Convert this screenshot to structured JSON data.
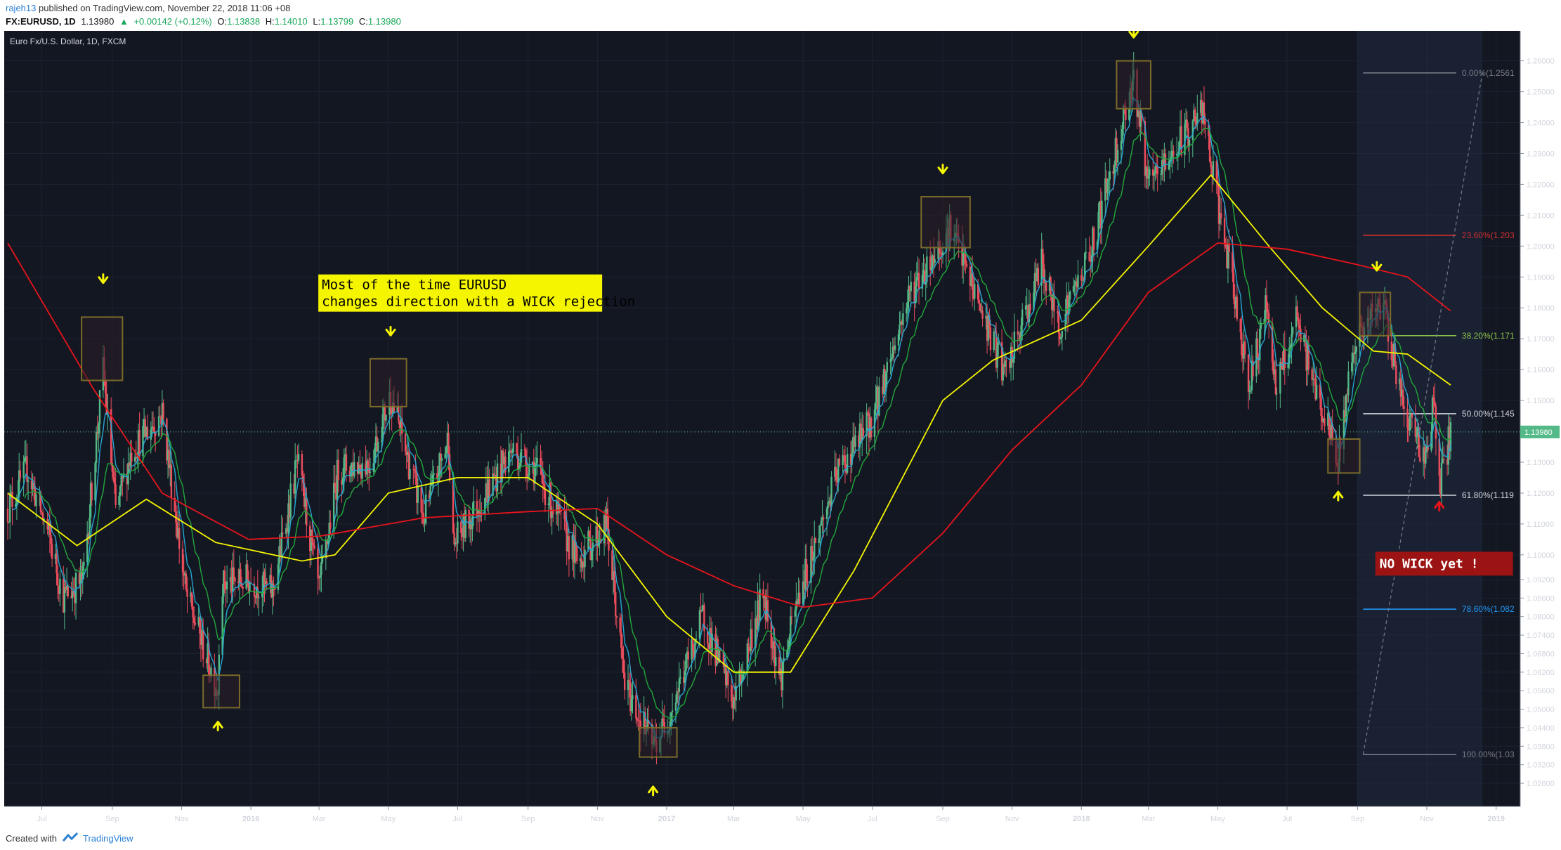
{
  "header": {
    "user": "rajeh13",
    "published": "published on TradingView.com, November 22, 2018 11:06 +08",
    "symbol": "FX:EURUSD, 1D",
    "last": "1.13980",
    "change": "+0.00142 (+0.12%)",
    "o_label": "O:",
    "o": "1.13838",
    "h_label": "H:",
    "h": "1.14010",
    "l_label": "L:",
    "l": "1.13799",
    "c_label": "C:",
    "c": "1.13980"
  },
  "footer": {
    "created": "Created with",
    "brand": "TradingView"
  },
  "colors": {
    "background": "#131722",
    "up_candle": "#53b987",
    "down_candle": "#eb4d5c",
    "ema_fast": "#26a6d1",
    "ema_mid": "#22a83c",
    "ma_yellow": "#f5f500",
    "ma_red": "#e8141c",
    "annotation_yellow": "#f5f500",
    "price_tag": "#53b987"
  },
  "chart_data": {
    "type": "candlestick",
    "title": "Euro Fx/U.S. Dollar, 1D, FXCM",
    "ylim": [
      1.0185,
      1.2697
    ],
    "ylabels": [
      "1.26000",
      "1.25000",
      "1.24000",
      "1.23000",
      "1.22000",
      "1.21000",
      "1.20000",
      "1.19000",
      "1.18000",
      "1.17000",
      "1.16000",
      "1.15000",
      "1.14000",
      "1.13000",
      "1.12000",
      "1.11000",
      "1.10000",
      "1.09200",
      "1.08600",
      "1.08000",
      "1.07400",
      "1.06800",
      "1.06200",
      "1.05600",
      "1.05000",
      "1.04400",
      "1.03800",
      "1.03200",
      "1.02600"
    ],
    "current_price": "1.13980",
    "xlabels": [
      "Jul",
      "Sep",
      "Nov",
      "2016",
      "Mar",
      "May",
      "Jul",
      "Sep",
      "Nov",
      "2017",
      "Mar",
      "May",
      "Jul",
      "Sep",
      "Nov",
      "2018",
      "Mar",
      "May",
      "Jul",
      "Sep",
      "Nov",
      "2019"
    ],
    "fibonacci": [
      {
        "label": "0.00%(1.2561",
        "price": 1.2561,
        "color": "#787b86"
      },
      {
        "label": "23.60%(1.203",
        "price": 1.2035,
        "color": "#d32f2f"
      },
      {
        "label": "38.20%(1.171",
        "price": 1.171,
        "color": "#8bc34a"
      },
      {
        "label": "50.00%(1.145",
        "price": 1.1457,
        "color": "#d1d4dc"
      },
      {
        "label": "61.80%(1.119",
        "price": 1.1193,
        "color": "#d1d4dc"
      },
      {
        "label": "78.60%(1.082",
        "price": 1.0824,
        "color": "#2196f3"
      },
      {
        "label": "100.00%(1.03",
        "price": 1.0353,
        "color": "#787b86"
      }
    ],
    "annotation_text": [
      "Most of the time EURUSD",
      "changes direction with a WICK rejection"
    ],
    "no_wick_text": "NO WICK yet !",
    "price_path": [
      {
        "t": "2015-06-01",
        "p": 1.115
      },
      {
        "t": "2015-06-18",
        "p": 1.128
      },
      {
        "t": "2015-07-08",
        "p": 1.105
      },
      {
        "t": "2015-07-20",
        "p": 1.086
      },
      {
        "t": "2015-08-06",
        "p": 1.092
      },
      {
        "t": "2015-08-24",
        "p": 1.16
      },
      {
        "t": "2015-09-04",
        "p": 1.114
      },
      {
        "t": "2015-09-18",
        "p": 1.134
      },
      {
        "t": "2015-10-15",
        "p": 1.146
      },
      {
        "t": "2015-11-05",
        "p": 1.087
      },
      {
        "t": "2015-12-03",
        "p": 1.056
      },
      {
        "t": "2015-12-05",
        "p": 1.09
      },
      {
        "t": "2015-12-30",
        "p": 1.092
      },
      {
        "t": "2016-01-20",
        "p": 1.088
      },
      {
        "t": "2016-02-11",
        "p": 1.13
      },
      {
        "t": "2016-03-01",
        "p": 1.088
      },
      {
        "t": "2016-03-18",
        "p": 1.128
      },
      {
        "t": "2016-04-15",
        "p": 1.13
      },
      {
        "t": "2016-05-03",
        "p": 1.152
      },
      {
        "t": "2016-06-01",
        "p": 1.112
      },
      {
        "t": "2016-06-23",
        "p": 1.138
      },
      {
        "t": "2016-06-27",
        "p": 1.103
      },
      {
        "t": "2016-08-18",
        "p": 1.134
      },
      {
        "t": "2016-09-08",
        "p": 1.128
      },
      {
        "t": "2016-10-14",
        "p": 1.098
      },
      {
        "t": "2016-11-09",
        "p": 1.11
      },
      {
        "t": "2016-11-25",
        "p": 1.058
      },
      {
        "t": "2016-12-20",
        "p": 1.038
      },
      {
        "t": "2017-01-01",
        "p": 1.046
      },
      {
        "t": "2017-02-02",
        "p": 1.08
      },
      {
        "t": "2017-03-01",
        "p": 1.052
      },
      {
        "t": "2017-03-27",
        "p": 1.088
      },
      {
        "t": "2017-04-11",
        "p": 1.06
      },
      {
        "t": "2017-04-28",
        "p": 1.088
      },
      {
        "t": "2017-06-01",
        "p": 1.127
      },
      {
        "t": "2017-07-01",
        "p": 1.144
      },
      {
        "t": "2017-08-02",
        "p": 1.184
      },
      {
        "t": "2017-09-08",
        "p": 1.206
      },
      {
        "t": "2017-10-26",
        "p": 1.158
      },
      {
        "t": "2017-11-27",
        "p": 1.194
      },
      {
        "t": "2017-12-12",
        "p": 1.174
      },
      {
        "t": "2018-01-10",
        "p": 1.199
      },
      {
        "t": "2018-02-16",
        "p": 1.255
      },
      {
        "t": "2018-03-01",
        "p": 1.219
      },
      {
        "t": "2018-04-17",
        "p": 1.244
      },
      {
        "t": "2018-05-29",
        "p": 1.155
      },
      {
        "t": "2018-06-14",
        "p": 1.182
      },
      {
        "t": "2018-06-21",
        "p": 1.153
      },
      {
        "t": "2018-07-09",
        "p": 1.175
      },
      {
        "t": "2018-08-15",
        "p": 1.13
      },
      {
        "t": "2018-08-28",
        "p": 1.168
      },
      {
        "t": "2018-09-24",
        "p": 1.182
      },
      {
        "t": "2018-10-10",
        "p": 1.15
      },
      {
        "t": "2018-10-31",
        "p": 1.131
      },
      {
        "t": "2018-11-07",
        "p": 1.15
      },
      {
        "t": "2018-11-12",
        "p": 1.122
      },
      {
        "t": "2018-11-22",
        "p": 1.1398
      }
    ],
    "ma_yellow": [
      {
        "t": "2015-06-01",
        "p": 1.12
      },
      {
        "t": "2015-08-01",
        "p": 1.103
      },
      {
        "t": "2015-10-01",
        "p": 1.118
      },
      {
        "t": "2015-12-01",
        "p": 1.104
      },
      {
        "t": "2016-02-15",
        "p": 1.098
      },
      {
        "t": "2016-03-15",
        "p": 1.1
      },
      {
        "t": "2016-05-01",
        "p": 1.12
      },
      {
        "t": "2016-07-01",
        "p": 1.125
      },
      {
        "t": "2016-09-01",
        "p": 1.125
      },
      {
        "t": "2016-11-01",
        "p": 1.11
      },
      {
        "t": "2017-01-01",
        "p": 1.08
      },
      {
        "t": "2017-03-01",
        "p": 1.062
      },
      {
        "t": "2017-04-20",
        "p": 1.062
      },
      {
        "t": "2017-06-15",
        "p": 1.095
      },
      {
        "t": "2017-09-01",
        "p": 1.15
      },
      {
        "t": "2017-10-15",
        "p": 1.163
      },
      {
        "t": "2018-01-01",
        "p": 1.176
      },
      {
        "t": "2018-03-01",
        "p": 1.2
      },
      {
        "t": "2018-04-25",
        "p": 1.223
      },
      {
        "t": "2018-06-15",
        "p": 1.2
      },
      {
        "t": "2018-08-01",
        "p": 1.18
      },
      {
        "t": "2018-09-15",
        "p": 1.166
      },
      {
        "t": "2018-10-15",
        "p": 1.165
      },
      {
        "t": "2018-11-22",
        "p": 1.155
      }
    ],
    "ma_red": [
      {
        "t": "2015-06-01",
        "p": 1.201
      },
      {
        "t": "2015-08-15",
        "p": 1.154
      },
      {
        "t": "2015-10-15",
        "p": 1.12
      },
      {
        "t": "2015-12-30",
        "p": 1.105
      },
      {
        "t": "2016-03-01",
        "p": 1.106
      },
      {
        "t": "2016-06-01",
        "p": 1.112
      },
      {
        "t": "2016-09-01",
        "p": 1.114
      },
      {
        "t": "2016-11-01",
        "p": 1.115
      },
      {
        "t": "2017-01-01",
        "p": 1.1
      },
      {
        "t": "2017-03-01",
        "p": 1.09
      },
      {
        "t": "2017-05-01",
        "p": 1.083
      },
      {
        "t": "2017-07-01",
        "p": 1.086
      },
      {
        "t": "2017-09-01",
        "p": 1.107
      },
      {
        "t": "2017-11-01",
        "p": 1.134
      },
      {
        "t": "2018-01-01",
        "p": 1.155
      },
      {
        "t": "2018-03-01",
        "p": 1.185
      },
      {
        "t": "2018-05-01",
        "p": 1.201
      },
      {
        "t": "2018-07-01",
        "p": 1.199
      },
      {
        "t": "2018-09-01",
        "p": 1.194
      },
      {
        "t": "2018-10-15",
        "p": 1.19
      },
      {
        "t": "2018-11-22",
        "p": 1.179
      }
    ],
    "ema_fast_lag": 8,
    "ema_mid_lag": 22,
    "boxes": [
      {
        "from": "2015-08-05",
        "to": "2015-09-10",
        "low": 1.1565,
        "high": 1.177
      },
      {
        "from": "2015-11-20",
        "to": "2015-12-22",
        "low": 1.0505,
        "high": 1.061
      },
      {
        "from": "2016-04-15",
        "to": "2016-05-17",
        "low": 1.148,
        "high": 1.1635
      },
      {
        "from": "2016-12-08",
        "to": "2017-01-10",
        "low": 1.0345,
        "high": 1.044
      },
      {
        "from": "2017-08-13",
        "to": "2017-09-25",
        "low": 1.1995,
        "high": 1.216
      },
      {
        "from": "2018-02-01",
        "to": "2018-03-03",
        "low": 1.2445,
        "high": 1.26
      },
      {
        "from": "2018-08-06",
        "to": "2018-09-03",
        "low": 1.1265,
        "high": 1.1375
      },
      {
        "from": "2018-09-03",
        "to": "2018-09-30",
        "low": 1.171,
        "high": 1.185
      }
    ],
    "arrows_down": [
      {
        "t": "2015-08-24",
        "p": 1.189
      },
      {
        "t": "2016-05-03",
        "p": 1.172
      },
      {
        "t": "2017-09-01",
        "p": 1.2245
      },
      {
        "t": "2018-02-16",
        "p": 1.2685
      },
      {
        "t": "2018-09-18",
        "p": 1.193
      }
    ],
    "arrows_up": [
      {
        "t": "2015-12-03",
        "p": 1.045
      },
      {
        "t": "2016-12-20",
        "p": 1.024
      },
      {
        "t": "2018-08-15",
        "p": 1.1195
      }
    ],
    "arrow_red": {
      "t": "2018-11-12",
      "p": 1.1162
    },
    "fib_zone": {
      "from": "2018-09-01",
      "to": "2018-12-20"
    },
    "fib_diag": {
      "from": {
        "t": "2018-09-06",
        "p": 1.0353
      },
      "to": {
        "t": "2018-12-20",
        "p": 1.2561
      }
    },
    "annotation_anchor": {
      "t": "2016-03-01",
      "p": 1.189
    },
    "no_wick_anchor": {
      "t": "2018-09-08",
      "p": 1.101
    }
  }
}
